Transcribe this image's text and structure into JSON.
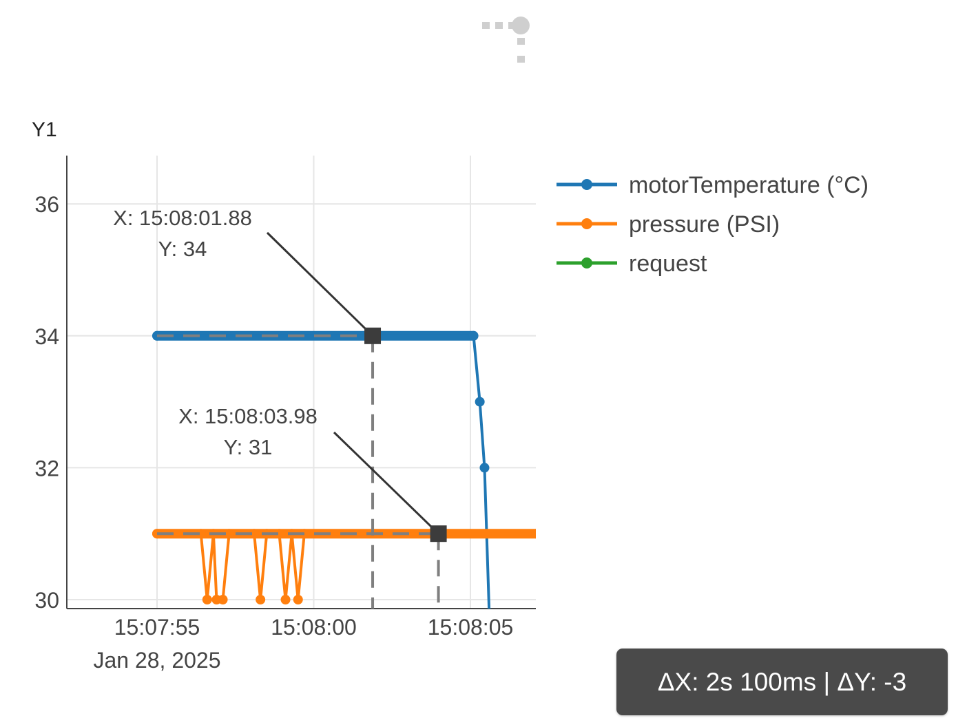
{
  "toolbar": {
    "icon": "drag-handle-icon"
  },
  "chart_data": {
    "type": "line",
    "ylabel": "Y1",
    "ylim": [
      29.95,
      36.7
    ],
    "y_ticks": [
      {
        "value": 30,
        "label": "30"
      },
      {
        "value": 32,
        "label": "32"
      },
      {
        "value": 34,
        "label": "34"
      },
      {
        "value": 36,
        "label": "36"
      }
    ],
    "xlim": [
      "15:07:54.85",
      "15:08:07.1"
    ],
    "x_ticks": [
      {
        "value": "15:07:55",
        "label": "15:07:55",
        "sublabel": "Jan 28, 2025"
      },
      {
        "value": "15:08:00",
        "label": "15:08:00",
        "sublabel": ""
      },
      {
        "value": "15:08:05",
        "label": "15:08:05",
        "sublabel": ""
      }
    ],
    "grid": true,
    "legend_position": "right",
    "series": [
      {
        "name": "motorTemperature (°C)",
        "color": "#1f77b4",
        "marker_dense_ranges": [
          [
            "15:07:55",
            "15:08:05.1",
            34
          ]
        ],
        "x": [
          "15:07:55",
          "15:08:05.1",
          "15:08:05.3",
          "15:08:05.45",
          "15:08:05.6"
        ],
        "y": [
          34,
          34,
          33,
          32,
          29.8
        ]
      },
      {
        "name": "pressure (PSI)",
        "color": "#ff7f0e",
        "marker_dense_ranges": [
          [
            "15:07:55",
            "15:08:07.1",
            31
          ]
        ],
        "x": [
          "15:07:55",
          "15:07:56.4",
          "15:07:56.6",
          "15:07:56.8",
          "15:07:56.9",
          "15:07:57.1",
          "15:07:57.3",
          "15:07:58.1",
          "15:07:58.3",
          "15:07:58.5",
          "15:07:58.9",
          "15:07:59.1",
          "15:07:59.3",
          "15:07:59.5",
          "15:07:59.7",
          "15:08:07.1"
        ],
        "y": [
          31,
          31,
          30,
          31,
          30,
          30,
          31,
          31,
          30,
          31,
          31,
          30,
          31,
          30,
          31,
          31
        ]
      },
      {
        "name": "request",
        "color": "#2ca02c",
        "x": [],
        "y": []
      }
    ],
    "annotations": [
      {
        "x": "15:08:01.88",
        "y": 34,
        "text_x": "X: 15:08:01.88",
        "text_y": "Y: 34"
      },
      {
        "x": "15:08:03.98",
        "y": 31,
        "text_x": "X: 15:08:03.98",
        "text_y": "Y: 31"
      }
    ]
  },
  "measure": {
    "text": "ΔX: 2s 100ms | ΔY: -3"
  },
  "colors": {
    "grid": "#e6e6e6",
    "axis": "#444444",
    "crosshair": "#7f7f7f",
    "box": "#4a4a4a"
  }
}
